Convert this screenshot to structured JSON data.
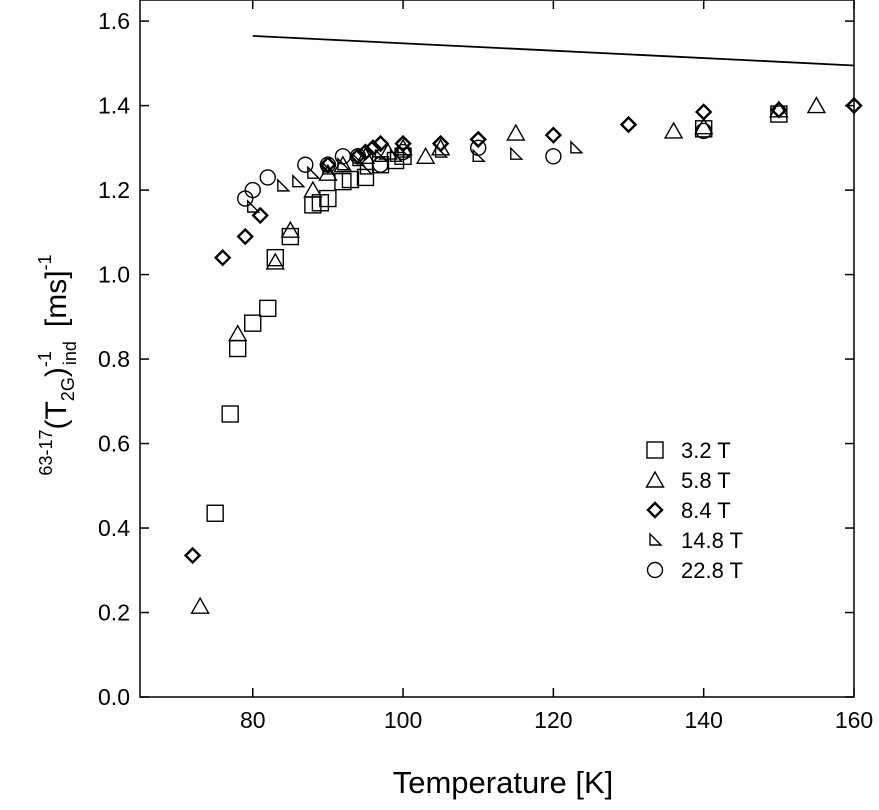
{
  "chart_data": {
    "type": "scatter",
    "title": "",
    "xlabel": "Temperature [K]",
    "ylabel": {
      "prefix_sup": "63-17",
      "main": "(T",
      "main_sub": "2G",
      "close": ")",
      "close_sup": "-1",
      "close_sub": "ind",
      "unit": "[ms]",
      "unit_sup": "-1"
    },
    "xlim": [
      65,
      160
    ],
    "ylim": [
      0.0,
      1.65
    ],
    "xticks": [
      "80",
      "100",
      "120",
      "140",
      "160"
    ],
    "yticks": [
      "0.0",
      "0.2",
      "0.4",
      "0.6",
      "0.8",
      "1.0",
      "1.2",
      "1.4",
      "1.6"
    ],
    "legend_position": "lower-right",
    "reference_line": {
      "x": [
        80,
        160
      ],
      "y": [
        1.565,
        1.495
      ]
    },
    "series": [
      {
        "name": "3.2 T",
        "marker": "square",
        "x": [
          75,
          77,
          78,
          80,
          82,
          83,
          85,
          88,
          89,
          90,
          92,
          93,
          95,
          97,
          99,
          100,
          140,
          150
        ],
        "y": [
          0.435,
          0.67,
          0.825,
          0.885,
          0.92,
          1.04,
          1.09,
          1.165,
          1.17,
          1.18,
          1.22,
          1.225,
          1.23,
          1.26,
          1.27,
          1.28,
          1.345,
          1.38
        ]
      },
      {
        "name": "5.8 T",
        "marker": "triangle",
        "x": [
          73,
          78,
          83,
          85,
          88,
          90,
          92,
          95,
          98,
          100,
          103,
          105,
          115,
          136,
          140,
          150,
          155
        ],
        "y": [
          0.215,
          0.86,
          1.03,
          1.105,
          1.2,
          1.24,
          1.26,
          1.28,
          1.29,
          1.3,
          1.28,
          1.3,
          1.335,
          1.34,
          1.35,
          1.39,
          1.4
        ]
      },
      {
        "name": "8.4 T",
        "marker": "diamond",
        "x": [
          72,
          76,
          79,
          81,
          90,
          94,
          95,
          96,
          97,
          100,
          105,
          110,
          120,
          130,
          140,
          150,
          160
        ],
        "y": [
          0.335,
          1.04,
          1.09,
          1.14,
          1.26,
          1.28,
          1.29,
          1.3,
          1.31,
          1.31,
          1.31,
          1.32,
          1.33,
          1.355,
          1.385,
          1.39,
          1.4
        ]
      },
      {
        "name": "14.8 T",
        "marker": "right-triangle",
        "x": [
          80,
          84,
          86,
          88,
          90,
          92,
          94,
          95,
          97,
          99,
          100,
          105,
          110,
          115,
          123
        ],
        "y": [
          1.16,
          1.21,
          1.22,
          1.24,
          1.25,
          1.26,
          1.27,
          1.25,
          1.28,
          1.28,
          1.29,
          1.29,
          1.28,
          1.285,
          1.3
        ]
      },
      {
        "name": "22.8 T",
        "marker": "circle",
        "x": [
          79,
          80,
          82,
          87,
          90,
          92,
          94,
          97,
          100,
          110,
          120,
          140
        ],
        "y": [
          1.18,
          1.2,
          1.23,
          1.26,
          1.26,
          1.28,
          1.28,
          1.26,
          1.29,
          1.3,
          1.28,
          1.34
        ]
      }
    ]
  }
}
